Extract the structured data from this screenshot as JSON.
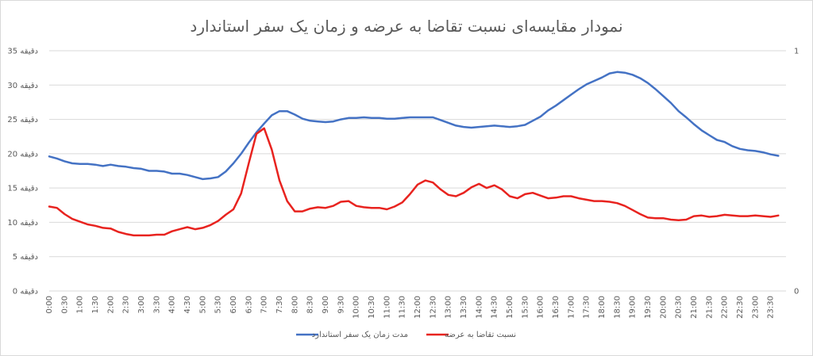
{
  "chart_data": {
    "type": "line",
    "title": "نمودار مقایسه‌ای نسبت تقاضا به عرضه و زمان یک سفر استاندارد",
    "y_unit": "دقیقه",
    "y_ticks": [
      "35 دقیقه",
      "30 دقیقه",
      "25 دقیقه",
      "20 دقیقه",
      "15 دقیقه",
      "10 دقیقه",
      "5 دقیقه",
      "0 دقیقه"
    ],
    "y_values": [
      35,
      30,
      25,
      20,
      15,
      10,
      5,
      0
    ],
    "ylim": [
      0,
      35
    ],
    "y2_ticks": [
      "1",
      "0"
    ],
    "y2lim": [
      0,
      1
    ],
    "x_labels": [
      "0:00",
      "0:30",
      "1:00",
      "1:30",
      "2:00",
      "2:30",
      "3:00",
      "3:30",
      "4:00",
      "4:30",
      "5:00",
      "5:30",
      "6:00",
      "6:30",
      "7:00",
      "7:30",
      "8:00",
      "8:30",
      "9:00",
      "9:30",
      "10:00",
      "10:30",
      "11:00",
      "11:30",
      "12:00",
      "12:30",
      "13:00",
      "13:30",
      "14:00",
      "14:30",
      "15:00",
      "15:30",
      "16:00",
      "16:30",
      "17:00",
      "17:30",
      "18:00",
      "18:30",
      "19:00",
      "19:30",
      "20:00",
      "20:30",
      "21:00",
      "21:30",
      "22:00",
      "22:30",
      "23:00",
      "23:30"
    ],
    "grid": true,
    "legend_position": "bottom",
    "series": [
      {
        "name": "مدت زمان یک سفر استاندارد",
        "color": "#4472C4",
        "axis": "primary",
        "values": [
          19.6,
          19.3,
          18.9,
          18.6,
          18.5,
          18.5,
          18.4,
          18.2,
          18.4,
          18.2,
          18.1,
          17.9,
          17.8,
          17.5,
          17.5,
          17.4,
          17.1,
          17.1,
          16.9,
          16.6,
          16.3,
          16.4,
          16.6,
          17.4,
          18.6,
          20.0,
          21.6,
          23.1,
          24.4,
          25.6,
          26.2,
          26.2,
          25.7,
          25.1,
          24.8,
          24.7,
          24.6,
          24.7,
          25.0,
          25.2,
          25.2,
          25.3,
          25.2,
          25.2,
          25.1,
          25.1,
          25.2,
          25.3,
          25.3,
          25.3,
          25.3,
          24.9,
          24.5,
          24.1,
          23.9,
          23.8,
          23.9,
          24.0,
          24.1,
          24.0,
          23.9,
          24.0,
          24.2,
          24.8,
          25.4,
          26.3,
          27.0,
          27.8,
          28.6,
          29.4,
          30.1,
          30.6,
          31.1,
          31.7,
          31.9,
          31.8,
          31.5,
          31.0,
          30.3,
          29.4,
          28.4,
          27.4,
          26.2,
          25.3,
          24.3,
          23.4,
          22.7,
          22.0,
          21.7,
          21.1,
          20.7,
          20.5,
          20.4,
          20.2,
          19.9,
          19.7
        ]
      },
      {
        "name": "نسبت تقاضا به عرضه",
        "color": "#E8231F",
        "axis": "primary",
        "values": [
          12.3,
          12.1,
          11.2,
          10.5,
          10.1,
          9.7,
          9.5,
          9.2,
          9.1,
          8.6,
          8.3,
          8.1,
          8.1,
          8.1,
          8.2,
          8.2,
          8.7,
          9.0,
          9.3,
          9.0,
          9.2,
          9.6,
          10.2,
          11.1,
          11.9,
          14.2,
          18.6,
          22.9,
          23.7,
          20.6,
          16.1,
          13.1,
          11.6,
          11.6,
          12.0,
          12.2,
          12.1,
          12.4,
          13.0,
          13.1,
          12.4,
          12.2,
          12.1,
          12.1,
          11.9,
          12.3,
          12.9,
          14.1,
          15.5,
          16.1,
          15.8,
          14.8,
          14.0,
          13.8,
          14.3,
          15.1,
          15.6,
          15.0,
          15.4,
          14.8,
          13.8,
          13.5,
          14.1,
          14.3,
          13.9,
          13.5,
          13.6,
          13.8,
          13.8,
          13.5,
          13.3,
          13.1,
          13.1,
          13.0,
          12.8,
          12.4,
          11.8,
          11.2,
          10.7,
          10.6,
          10.6,
          10.4,
          10.3,
          10.4,
          10.9,
          11.0,
          10.8,
          10.9,
          11.1,
          11.0,
          10.9,
          10.9,
          11.0,
          10.9,
          10.8,
          11.0
        ]
      }
    ]
  }
}
